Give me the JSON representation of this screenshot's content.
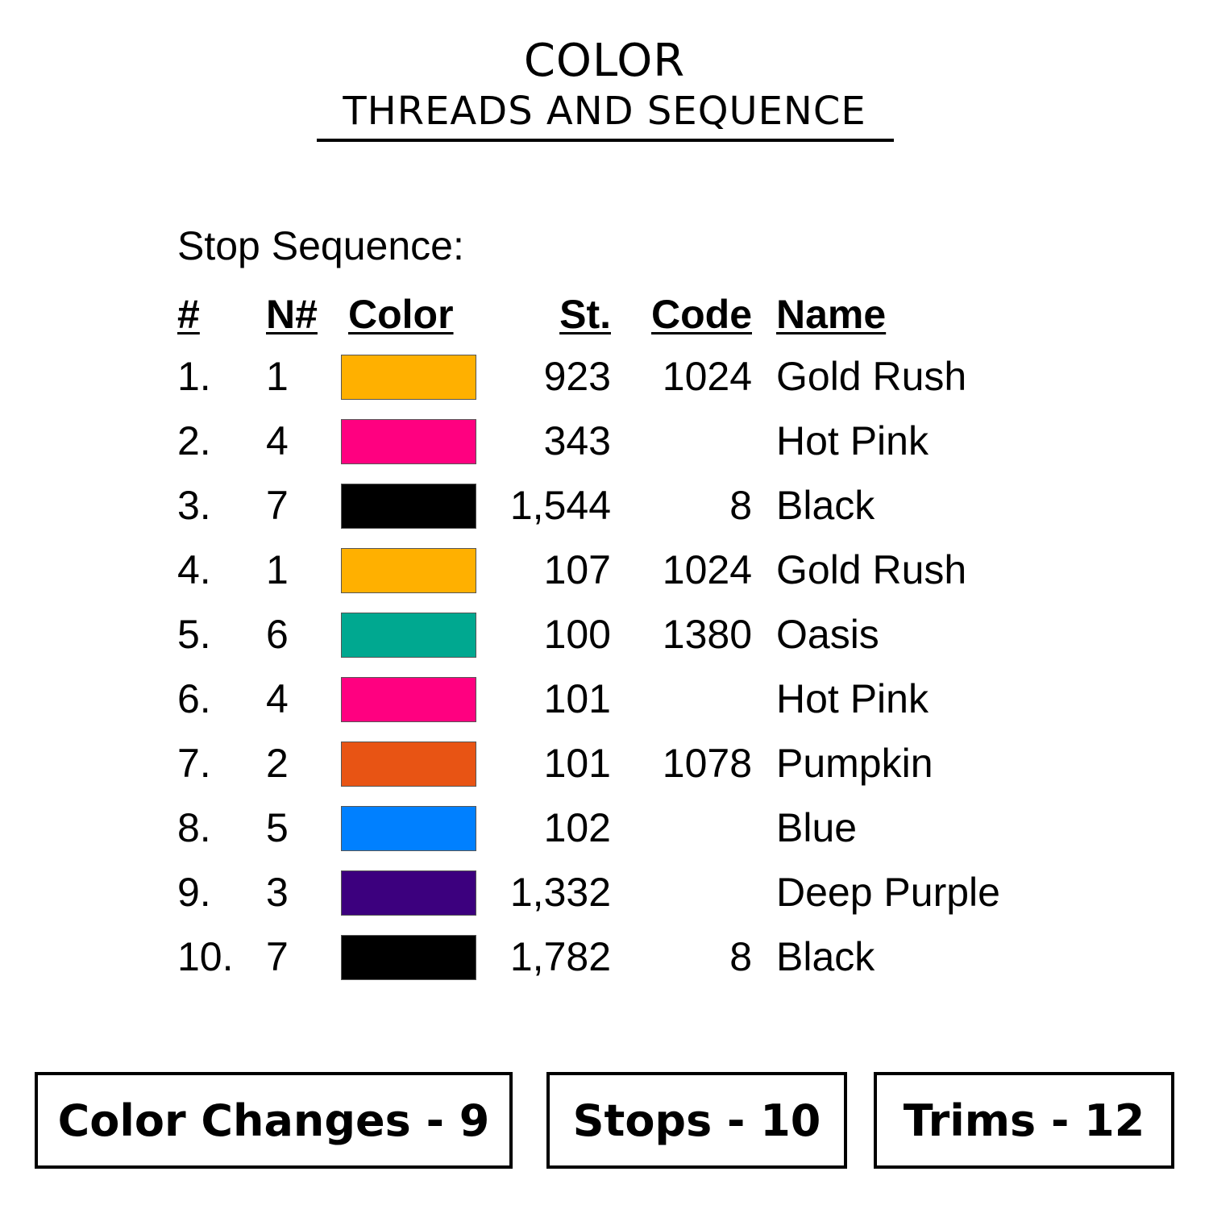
{
  "header": {
    "title": "COLOR",
    "subtitle": "THREADS AND SEQUENCE"
  },
  "section_label": "Stop Sequence:",
  "columns": {
    "num": "#",
    "needle": "N#",
    "color": "Color",
    "stitches": "St.",
    "code": "Code",
    "name": "Name"
  },
  "rows": [
    {
      "num": "1.",
      "needle": "1",
      "color": "#FFB000",
      "stitches": "923",
      "code": "1024",
      "name": "Gold Rush"
    },
    {
      "num": "2.",
      "needle": "4",
      "color": "#FF0080",
      "stitches": "343",
      "code": "",
      "name": "Hot Pink"
    },
    {
      "num": "3.",
      "needle": "7",
      "color": "#000000",
      "stitches": "1,544",
      "code": "8",
      "name": "Black"
    },
    {
      "num": "4.",
      "needle": "1",
      "color": "#FFB000",
      "stitches": "107",
      "code": "1024",
      "name": "Gold Rush"
    },
    {
      "num": "5.",
      "needle": "6",
      "color": "#00A890",
      "stitches": "100",
      "code": "1380",
      "name": "Oasis"
    },
    {
      "num": "6.",
      "needle": "4",
      "color": "#FF0080",
      "stitches": "101",
      "code": "",
      "name": "Hot Pink"
    },
    {
      "num": "7.",
      "needle": "2",
      "color": "#E85414",
      "stitches": "101",
      "code": "1078",
      "name": "Pumpkin"
    },
    {
      "num": "8.",
      "needle": "5",
      "color": "#0080FF",
      "stitches": "102",
      "code": "",
      "name": "Blue"
    },
    {
      "num": "9.",
      "needle": "3",
      "color": "#3C007E",
      "stitches": "1,332",
      "code": "",
      "name": "Deep Purple"
    },
    {
      "num": "10.",
      "needle": "7",
      "color": "#000000",
      "stitches": "1,782",
      "code": "8",
      "name": "Black"
    }
  ],
  "stats": {
    "color_changes": "Color Changes - 9",
    "stops": "Stops - 10",
    "trims": "Trims - 12"
  }
}
